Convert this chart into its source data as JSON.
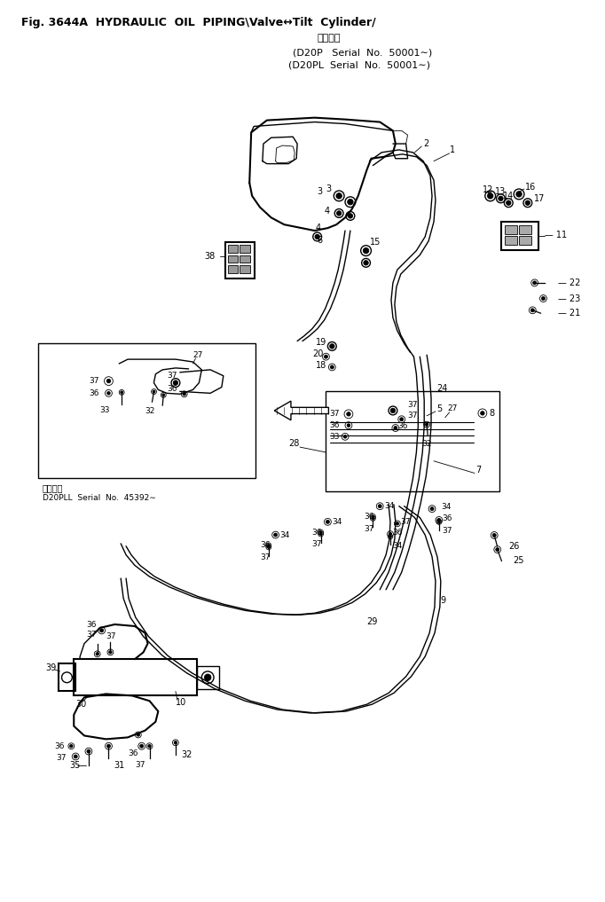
{
  "title_line1": "Fig. 3644A  HYDRAULIC  OIL  PIPING\\Valve↔Tilt  Cylinder/",
  "title_line2": "適用号機",
  "title_line3": "D20P   Serial  No.  50001∼",
  "title_line4": "D20PL  Serial  No.  50001∼",
  "inset_label1": "適用号機",
  "inset_label2": "D20PLL  Serial  No.  45392∼",
  "bg_color": "#ffffff",
  "line_color": "#000000",
  "fig_width": 6.82,
  "fig_height": 10.17,
  "dpi": 100
}
